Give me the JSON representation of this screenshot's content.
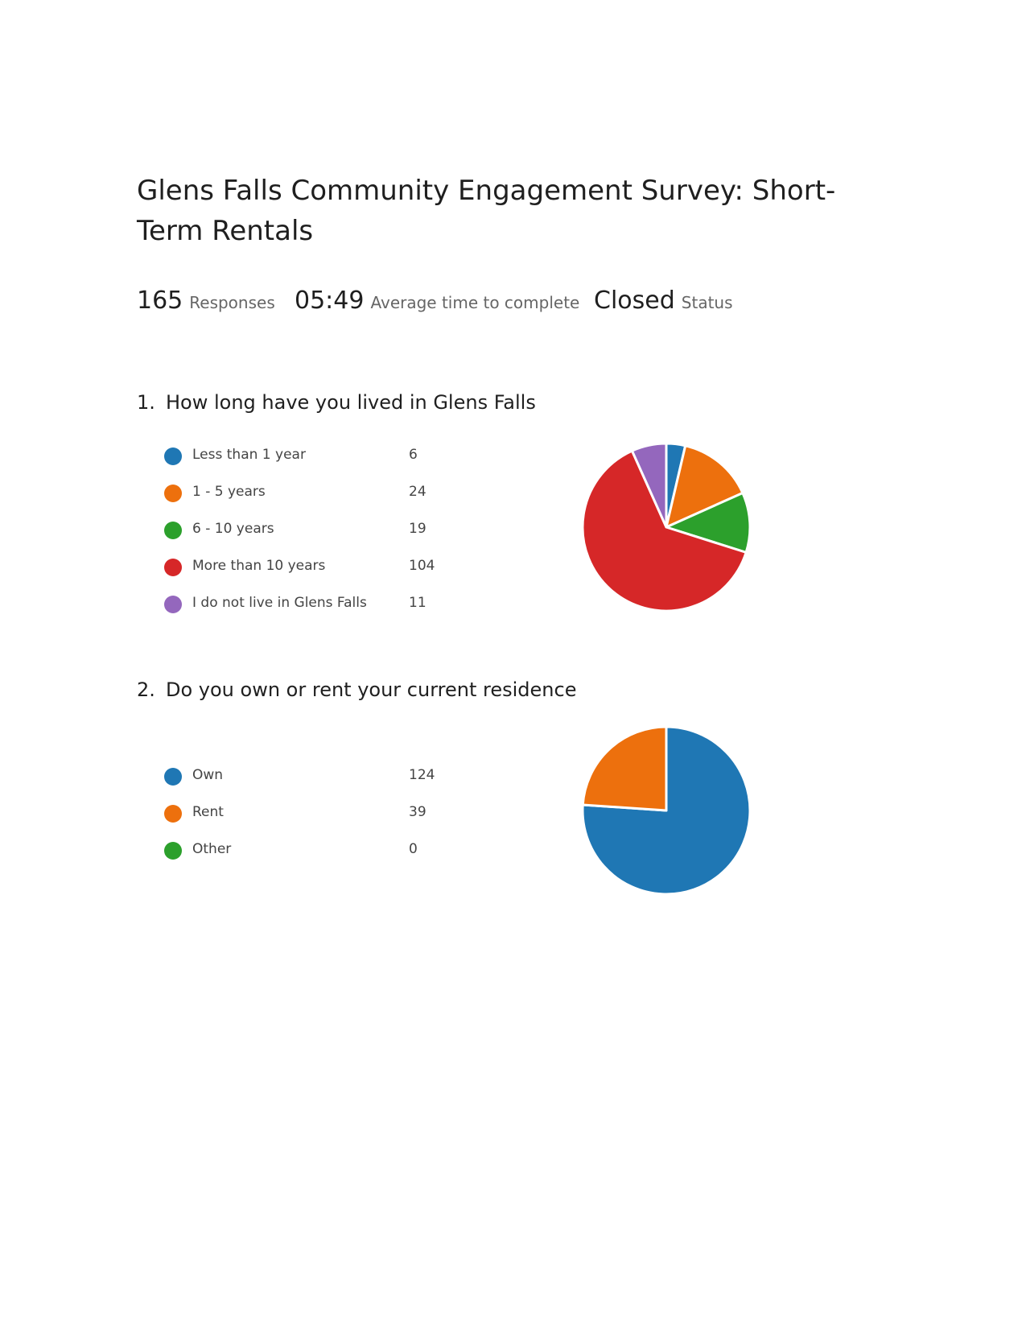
{
  "survey": {
    "title": "Glens Falls Community Engagement Survey: Short-Term Rentals"
  },
  "stats": {
    "responses_value": "165",
    "responses_label": "Responses",
    "avg_time_value": "05:49",
    "avg_time_label": "Average time to complete",
    "status_value": "Closed",
    "status_label": "Status"
  },
  "questions": [
    {
      "number": "1.",
      "title": "How long have you lived in Glens Falls"
    },
    {
      "number": "2.",
      "title": "Do you own or rent your current residence"
    }
  ],
  "chart_data": [
    {
      "type": "pie",
      "categories": [
        "Less than 1 year",
        "1 - 5 years",
        "6 - 10 years",
        "More than 10 years",
        "I do not live in Glens Falls"
      ],
      "values": [
        6,
        24,
        19,
        104,
        11
      ],
      "value_labels": [
        "6",
        "24",
        "19",
        "104",
        "11"
      ],
      "colors": [
        "#1f77b4",
        "#ed700d",
        "#2ca02c",
        "#d62728",
        "#9467bd"
      ]
    },
    {
      "type": "pie",
      "categories": [
        "Own",
        "Rent",
        "Other"
      ],
      "values": [
        124,
        39,
        0
      ],
      "value_labels": [
        "124",
        "39",
        "0"
      ],
      "colors": [
        "#1f77b4",
        "#ed700d",
        "#2ca02c"
      ]
    }
  ]
}
